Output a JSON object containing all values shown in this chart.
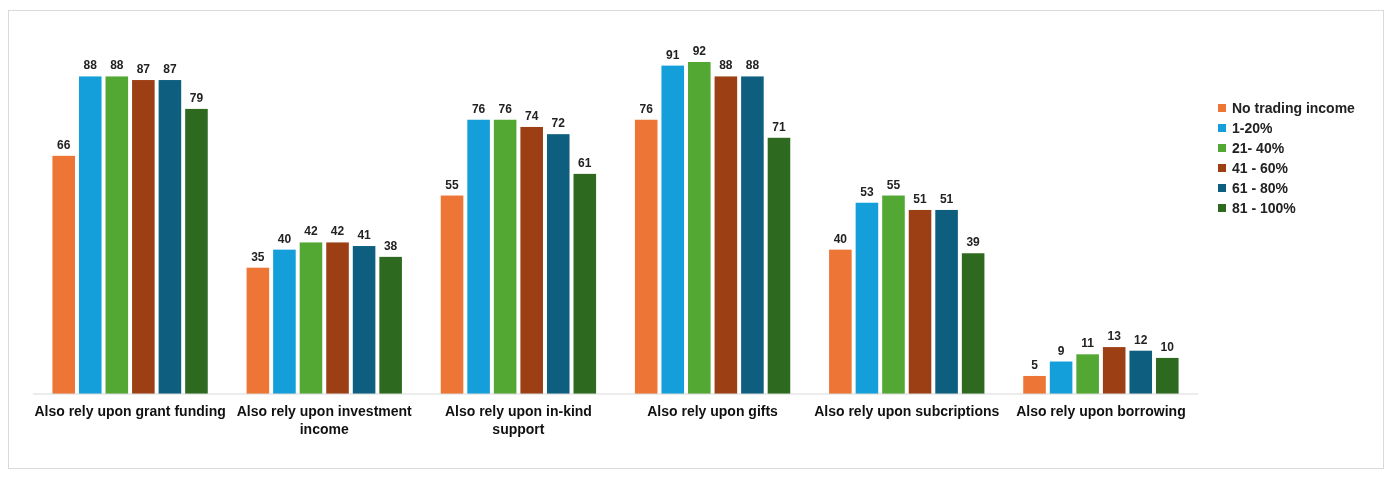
{
  "chart_data": {
    "type": "bar",
    "categories": [
      "Also rely upon grant funding",
      "Also rely upon investment income",
      "Also rely upon in-kind support",
      "Also rely upon gifts",
      "Also rely upon subcriptions",
      "Also rely upon borrowing"
    ],
    "series": [
      {
        "name": "No trading income",
        "color": "#ed7535",
        "values": [
          66,
          35,
          55,
          76,
          40,
          5
        ]
      },
      {
        "name": "1-20%",
        "color": "#149fda",
        "values": [
          88,
          40,
          76,
          91,
          53,
          9
        ]
      },
      {
        "name": "21- 40%",
        "color": "#52a832",
        "values": [
          88,
          42,
          76,
          92,
          55,
          11
        ]
      },
      {
        "name": "41 - 60%",
        "color": "#9c3f14",
        "values": [
          87,
          42,
          74,
          88,
          51,
          13
        ]
      },
      {
        "name": "61 - 80%",
        "color": "#0d5e7f",
        "values": [
          87,
          41,
          72,
          88,
          51,
          12
        ]
      },
      {
        "name": "81 - 100%",
        "color": "#2e6920",
        "values": [
          79,
          38,
          61,
          71,
          39,
          10
        ]
      }
    ],
    "data_labels": true,
    "legend": "right"
  }
}
